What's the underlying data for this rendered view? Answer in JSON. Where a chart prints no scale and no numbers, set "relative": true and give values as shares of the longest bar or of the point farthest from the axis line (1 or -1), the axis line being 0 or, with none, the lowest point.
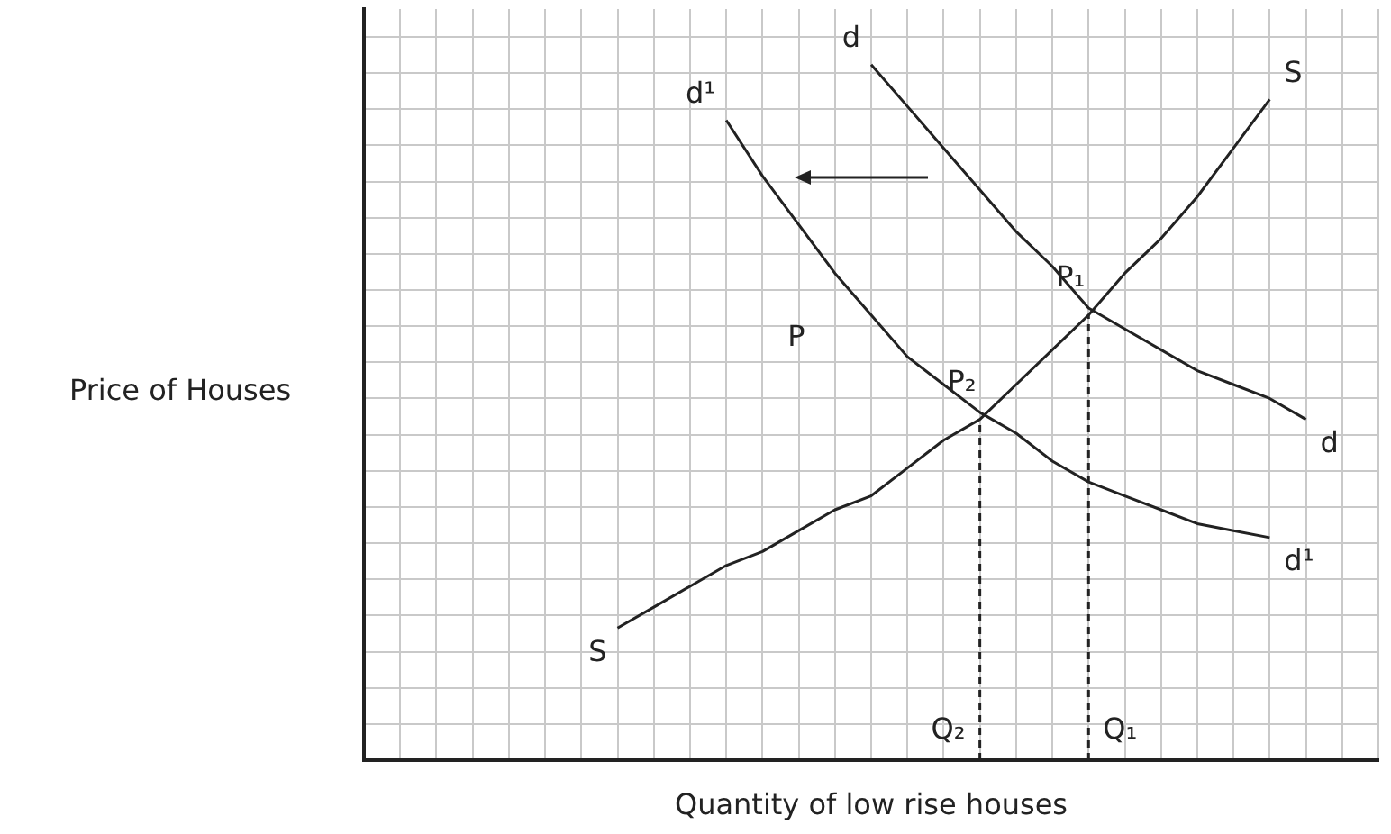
{
  "chart_data": {
    "type": "line",
    "relative": true,
    "xlabel": "Quantity of low rise houses",
    "ylabel": "Price of Houses",
    "categories": [
      null,
      null,
      null,
      null,
      null,
      null,
      null,
      null,
      null,
      null,
      null,
      null,
      null,
      null,
      null,
      null,
      null,
      null,
      null,
      null,
      null,
      null,
      null,
      null,
      null,
      null,
      null,
      null,
      null
    ],
    "grid": true,
    "marker": "none",
    "line_style": "solid",
    "series": [
      {
        "name": "S",
        "color": "#222222",
        "values": [
          null,
          null,
          null,
          null,
          null,
          null,
          null,
          0.19,
          0.22,
          0.25,
          0.28,
          0.3,
          0.33,
          0.36,
          0.38,
          0.42,
          0.46,
          0.49,
          0.54,
          0.59,
          0.64,
          0.7,
          0.75,
          0.81,
          0.88,
          0.95,
          null,
          null,
          null
        ]
      },
      {
        "name": "d¹",
        "color": "#222222",
        "values": [
          null,
          null,
          null,
          null,
          null,
          null,
          null,
          null,
          null,
          null,
          0.92,
          0.84,
          0.77,
          0.7,
          0.64,
          0.58,
          0.54,
          0.5,
          0.47,
          0.43,
          0.4,
          0.38,
          0.36,
          0.34,
          0.33,
          0.32,
          null,
          null,
          null
        ]
      },
      {
        "name": "d",
        "color": "#222222",
        "values": [
          null,
          null,
          null,
          null,
          null,
          null,
          null,
          null,
          null,
          null,
          null,
          null,
          null,
          null,
          1.0,
          0.94,
          0.88,
          0.82,
          0.76,
          0.71,
          0.65,
          0.62,
          0.59,
          0.56,
          0.54,
          0.52,
          0.49,
          null,
          null
        ]
      }
    ],
    "annotations": [
      "P₂",
      "Q₂",
      "P₁",
      "Q₁",
      "P"
    ]
  }
}
